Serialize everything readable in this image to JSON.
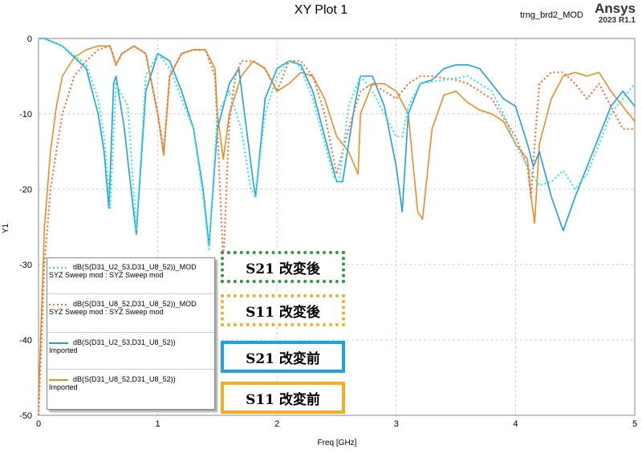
{
  "header": {
    "title": "XY Plot 1",
    "design": "trng_brd2_MOD",
    "brand": "Ansys",
    "version": "2023 R1.1"
  },
  "legend": [
    {
      "line1": "dB(S(D31_U2_53,D31_U8_52))_MOD",
      "line2": "SYZ Sweep mod : SYZ Sweep mod",
      "color": "#33e6e6",
      "style": "dotted"
    },
    {
      "line1": "dB(S(D31_U8_52,D31_U8_52))_MOD",
      "line2": "SYZ Sweep mod : SYZ Sweep mod",
      "color": "#f07040",
      "style": "dotted"
    },
    {
      "line1": "dB(S(D31_U2_53,D31_U8_52))",
      "line2": "Imported",
      "color": "#1aa3e0",
      "style": "solid"
    },
    {
      "line1": "dB(S(D31_U8_52,D31_U8_52))",
      "line2": "Imported",
      "color": "#f08c1e",
      "style": "solid"
    }
  ],
  "notes": [
    {
      "text": "S21 改変後",
      "border_color": "#2a9a3a",
      "border_style": "dotted"
    },
    {
      "text": "S11 改変後",
      "border_color": "#f0b020",
      "border_style": "dotted"
    },
    {
      "text": "S21 改変前",
      "border_color": "#1aa3e0",
      "border_style": "solid"
    },
    {
      "text": "S11 改変前",
      "border_color": "#f0b020",
      "border_style": "solid"
    }
  ],
  "chart_data": {
    "type": "line",
    "title": "XY Plot 1",
    "xlabel": "Freq [GHz]",
    "ylabel": "Y1",
    "xlim": [
      0,
      5
    ],
    "ylim": [
      -50,
      0
    ],
    "xticks": [
      0,
      1,
      2,
      3,
      4,
      5
    ],
    "yticks": [
      0,
      -10,
      -20,
      -30,
      -40,
      -50
    ],
    "grid": true,
    "legend_position": "bottom-left",
    "series": [
      {
        "name": "dB(S(D31_U2_53,D31_U8_52))_MOD",
        "color": "#33e6e6",
        "style": "dotted",
        "x": [
          0,
          0.05,
          0.2,
          0.4,
          0.5,
          0.55,
          0.6,
          0.65,
          0.75,
          0.82,
          0.9,
          1.0,
          1.1,
          1.2,
          1.3,
          1.38,
          1.43,
          1.5,
          1.6,
          1.7,
          1.78,
          1.82,
          1.9,
          2.0,
          2.1,
          2.15,
          2.2,
          2.3,
          2.4,
          2.48,
          2.52,
          2.6,
          2.7,
          2.8,
          2.9,
          3.0,
          3.05,
          3.1,
          3.2,
          3.4,
          3.6,
          3.8,
          3.9,
          4.0,
          4.1,
          4.2,
          4.3,
          4.4,
          4.5,
          4.6,
          4.7,
          4.8,
          4.9,
          5.0
        ],
        "y": [
          0,
          0,
          -1,
          -3.5,
          -8,
          -13,
          -22.5,
          -6,
          -9,
          -25.5,
          -5,
          -2,
          -4,
          -8,
          -12,
          -21,
          -28,
          -10,
          -7,
          -12,
          -20,
          -21,
          -10,
          -5,
          -3,
          -3,
          -4,
          -8,
          -14,
          -18.5,
          -19,
          -9,
          -5,
          -7,
          -10,
          -13,
          -13,
          -9,
          -6,
          -5.5,
          -5,
          -7,
          -10,
          -14,
          -17,
          -19.5,
          -19,
          -17.5,
          -20,
          -18,
          -14,
          -10,
          -8,
          -6
        ]
      },
      {
        "name": "dB(S(D31_U8_52,D31_U8_52))_MOD",
        "color": "#f07040",
        "style": "dotted",
        "x": [
          0,
          0.05,
          0.1,
          0.2,
          0.3,
          0.4,
          0.5,
          0.6,
          0.65,
          0.7,
          0.8,
          0.9,
          1.0,
          1.05,
          1.1,
          1.2,
          1.3,
          1.4,
          1.48,
          1.5,
          1.55,
          1.6,
          1.65,
          1.7,
          1.8,
          1.9,
          2.0,
          2.1,
          2.2,
          2.3,
          2.4,
          2.5,
          2.6,
          2.7,
          2.8,
          2.9,
          3.0,
          3.1,
          3.2,
          3.3,
          3.5,
          3.6,
          3.8,
          4.0,
          4.1,
          4.13,
          4.17,
          4.2,
          4.3,
          4.4,
          4.5,
          4.6,
          4.7,
          4.8,
          4.9,
          5.0
        ],
        "y": [
          -50,
          -30,
          -20,
          -10,
          -5,
          -3,
          -1.5,
          -1,
          -3.5,
          -2,
          -1,
          -2,
          -10,
          -15,
          -5,
          -2,
          -1.5,
          -1.5,
          -5,
          -12,
          -30,
          -11,
          -5,
          -3,
          -3,
          -4,
          -7,
          -3,
          -3,
          -5,
          -10,
          -18,
          -12,
          -7,
          -6,
          -7,
          -8,
          -6,
          -5,
          -5,
          -5.5,
          -6,
          -8,
          -13,
          -17,
          -21,
          -12,
          -6,
          -4.5,
          -4.5,
          -6,
          -8,
          -6,
          -9,
          -12,
          -12
        ]
      },
      {
        "name": "dB(S(D31_U2_53,D31_U8_52))",
        "color": "#1aa3e0",
        "style": "solid",
        "x": [
          0,
          0.05,
          0.2,
          0.4,
          0.5,
          0.55,
          0.59,
          0.63,
          0.65,
          0.72,
          0.79,
          0.82,
          0.9,
          1.0,
          1.1,
          1.2,
          1.3,
          1.38,
          1.43,
          1.5,
          1.6,
          1.68,
          1.8,
          1.82,
          1.9,
          2.0,
          2.1,
          2.2,
          2.3,
          2.4,
          2.5,
          2.55,
          2.65,
          2.7,
          2.8,
          2.9,
          3.0,
          3.05,
          3.1,
          3.2,
          3.3,
          3.4,
          3.5,
          3.6,
          3.7,
          3.8,
          3.9,
          4.0,
          4.1,
          4.15,
          4.2,
          4.3,
          4.4,
          4.5,
          4.6,
          4.7,
          4.8,
          4.9,
          5.0
        ],
        "y": [
          0,
          0,
          -1,
          -4,
          -10,
          -15,
          -22.5,
          -6,
          -5,
          -12,
          -22,
          -26,
          -7,
          -2,
          -3,
          -7,
          -12,
          -20,
          -27.5,
          -12,
          -6,
          -4,
          -19,
          -21,
          -8,
          -4,
          -3,
          -3.5,
          -7,
          -13,
          -19,
          -19,
          -9,
          -5,
          -5,
          -9,
          -17,
          -23,
          -10,
          -6,
          -5.5,
          -4,
          -3.5,
          -3.5,
          -4,
          -6,
          -8,
          -9,
          -14,
          -17,
          -15,
          -21,
          -25.5,
          -21,
          -17,
          -13,
          -9,
          -7,
          -9
        ]
      },
      {
        "name": "dB(S(D31_U8_52,D31_U8_52))",
        "color": "#f08c1e",
        "style": "solid",
        "x": [
          0,
          0.05,
          0.1,
          0.15,
          0.2,
          0.3,
          0.4,
          0.5,
          0.6,
          0.65,
          0.7,
          0.8,
          0.9,
          1.0,
          1.05,
          1.1,
          1.2,
          1.3,
          1.4,
          1.48,
          1.5,
          1.55,
          1.6,
          1.7,
          1.8,
          1.9,
          2.0,
          2.1,
          2.2,
          2.3,
          2.4,
          2.5,
          2.6,
          2.68,
          2.7,
          2.8,
          2.9,
          3.0,
          3.1,
          3.18,
          3.22,
          3.3,
          3.4,
          3.5,
          3.6,
          3.7,
          3.8,
          3.9,
          4.0,
          4.1,
          4.13,
          4.16,
          4.2,
          4.3,
          4.4,
          4.5,
          4.6,
          4.7,
          4.8,
          4.9,
          5.0
        ],
        "y": [
          -48,
          -25,
          -15,
          -9,
          -5,
          -2.5,
          -1.5,
          -1,
          -1,
          -3.5,
          -2,
          -1,
          -2,
          -10,
          -15.5,
          -5,
          -2,
          -1.5,
          -1.5,
          -4,
          -10,
          -16,
          -10,
          -5,
          -3,
          -4,
          -7,
          -6,
          -4.5,
          -5,
          -8,
          -13,
          -15,
          -18,
          -10,
          -6,
          -6,
          -7,
          -10,
          -23,
          -24,
          -12,
          -7.5,
          -7,
          -8.5,
          -9.5,
          -10,
          -11,
          -14,
          -16,
          -21,
          -24.5,
          -14,
          -8,
          -5,
          -4.5,
          -5,
          -4.5,
          -7,
          -9,
          -11
        ]
      }
    ]
  }
}
